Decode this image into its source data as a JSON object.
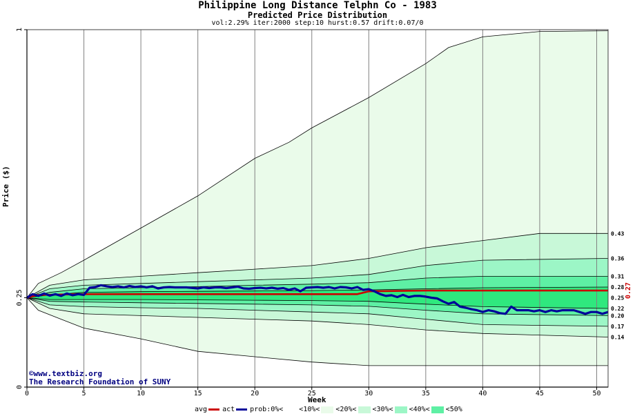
{
  "header": {
    "title": "Philippine Long Distance Telphn Co  - 1983",
    "subtitle": "Predicted Price Distribution",
    "params": "vol:2.29% iter:2000 step:10 hurst:0.57 drift:0.07/0"
  },
  "credits": {
    "line1": "©www.textbiz.org",
    "line2": "The Research Foundation of SUNY"
  },
  "legend": {
    "items": [
      {
        "label": "avg",
        "kind": "line",
        "color": "#cc0000"
      },
      {
        "label": "act",
        "kind": "line",
        "color": "#000099"
      },
      {
        "label": "prob:0%<",
        "kind": "swatch",
        "color": "#ffffff"
      },
      {
        "label": "<10%<",
        "kind": "swatch",
        "color": "#eafbea"
      },
      {
        "label": "<20%<",
        "kind": "swatch",
        "color": "#c8f8d8"
      },
      {
        "label": "<30%<",
        "kind": "swatch",
        "color": "#9cf6c6"
      },
      {
        "label": "<40%<",
        "kind": "swatch",
        "color": "#5ef0a4"
      },
      {
        "label": "<50%",
        "kind": "swatch",
        "color": ""
      }
    ]
  },
  "chart_data": {
    "type": "area",
    "title": "Philippine Long Distance Telphn Co  - 1983",
    "subtitle": "Predicted Price Distribution",
    "xlabel": "Week",
    "ylabel": "Price ($)",
    "xlim": [
      0,
      51
    ],
    "ylim": [
      0,
      1
    ],
    "x_ticks": [
      0,
      5,
      10,
      15,
      20,
      25,
      30,
      35,
      40,
      45,
      50
    ],
    "y_ticks": [
      {
        "value": 0,
        "label": "0"
      },
      {
        "value": 0.25,
        "label": "0.25"
      },
      {
        "value": 1,
        "label": "1"
      }
    ],
    "grid": true,
    "current_price_label": "0.27",
    "current_price": 0.27,
    "right_labels": [
      "0.43",
      "0.36",
      "0.31",
      "0.28",
      "0.25",
      "0.22",
      "0.20",
      "0.17",
      "0.14"
    ],
    "bands": [
      {
        "range": "0-10%",
        "color": "#eafbea",
        "upper": [
          [
            0,
            0.25
          ],
          [
            1,
            0.29
          ],
          [
            3,
            0.32
          ],
          [
            5,
            0.355
          ],
          [
            10,
            0.445
          ],
          [
            15,
            0.535
          ],
          [
            20,
            0.64
          ],
          [
            23,
            0.685
          ],
          [
            25,
            0.725
          ],
          [
            30,
            0.81
          ],
          [
            35,
            0.905
          ],
          [
            37,
            0.95
          ],
          [
            40,
            0.98
          ],
          [
            45,
            0.995
          ],
          [
            51,
            0.997
          ]
        ],
        "lower": [
          [
            0,
            0.25
          ],
          [
            1,
            0.215
          ],
          [
            3,
            0.19
          ],
          [
            5,
            0.165
          ],
          [
            10,
            0.135
          ],
          [
            15,
            0.1
          ],
          [
            20,
            0.085
          ],
          [
            25,
            0.07
          ],
          [
            30,
            0.06
          ],
          [
            35,
            0.06
          ],
          [
            51,
            0.06
          ]
        ]
      },
      {
        "range": "10-20%",
        "color": "#c8f8d8",
        "upper": [
          [
            0,
            0.25
          ],
          [
            2,
            0.285
          ],
          [
            5,
            0.3
          ],
          [
            10,
            0.31
          ],
          [
            15,
            0.32
          ],
          [
            20,
            0.33
          ],
          [
            25,
            0.34
          ],
          [
            30,
            0.36
          ],
          [
            35,
            0.39
          ],
          [
            40,
            0.41
          ],
          [
            45,
            0.43
          ],
          [
            51,
            0.43
          ]
        ],
        "lower": [
          [
            0,
            0.25
          ],
          [
            2,
            0.22
          ],
          [
            5,
            0.205
          ],
          [
            10,
            0.2
          ],
          [
            15,
            0.195
          ],
          [
            20,
            0.19
          ],
          [
            25,
            0.185
          ],
          [
            30,
            0.175
          ],
          [
            35,
            0.16
          ],
          [
            40,
            0.15
          ],
          [
            51,
            0.14
          ]
        ]
      },
      {
        "range": "20-30%",
        "color": "#9cf6c6",
        "upper": [
          [
            0,
            0.25
          ],
          [
            2,
            0.275
          ],
          [
            5,
            0.285
          ],
          [
            10,
            0.29
          ],
          [
            15,
            0.295
          ],
          [
            20,
            0.3
          ],
          [
            25,
            0.305
          ],
          [
            30,
            0.315
          ],
          [
            35,
            0.34
          ],
          [
            40,
            0.355
          ],
          [
            51,
            0.36
          ]
        ],
        "lower": [
          [
            0,
            0.25
          ],
          [
            2,
            0.23
          ],
          [
            5,
            0.225
          ],
          [
            10,
            0.222
          ],
          [
            15,
            0.22
          ],
          [
            20,
            0.215
          ],
          [
            25,
            0.21
          ],
          [
            30,
            0.205
          ],
          [
            35,
            0.19
          ],
          [
            40,
            0.175
          ],
          [
            51,
            0.17
          ]
        ]
      },
      {
        "range": "30-40%",
        "color": "#5ef0a4",
        "upper": [
          [
            0,
            0.25
          ],
          [
            2,
            0.265
          ],
          [
            5,
            0.275
          ],
          [
            10,
            0.278
          ],
          [
            15,
            0.281
          ],
          [
            20,
            0.285
          ],
          [
            25,
            0.288
          ],
          [
            30,
            0.292
          ],
          [
            35,
            0.305
          ],
          [
            40,
            0.31
          ],
          [
            51,
            0.31
          ]
        ],
        "lower": [
          [
            0,
            0.25
          ],
          [
            2,
            0.24
          ],
          [
            5,
            0.238
          ],
          [
            10,
            0.236
          ],
          [
            15,
            0.234
          ],
          [
            20,
            0.232
          ],
          [
            25,
            0.23
          ],
          [
            30,
            0.226
          ],
          [
            35,
            0.215
          ],
          [
            40,
            0.205
          ],
          [
            51,
            0.2
          ]
        ]
      },
      {
        "range": "40-50%",
        "color": "#2fe87e",
        "upper": [
          [
            0,
            0.25
          ],
          [
            2,
            0.258
          ],
          [
            5,
            0.265
          ],
          [
            10,
            0.267
          ],
          [
            15,
            0.268
          ],
          [
            20,
            0.269
          ],
          [
            25,
            0.27
          ],
          [
            30,
            0.272
          ],
          [
            35,
            0.275
          ],
          [
            40,
            0.278
          ],
          [
            51,
            0.28
          ]
        ],
        "lower": [
          [
            0,
            0.25
          ],
          [
            2,
            0.245
          ],
          [
            5,
            0.245
          ],
          [
            10,
            0.245
          ],
          [
            15,
            0.244
          ],
          [
            20,
            0.243
          ],
          [
            25,
            0.242
          ],
          [
            30,
            0.24
          ],
          [
            35,
            0.232
          ],
          [
            40,
            0.225
          ],
          [
            51,
            0.22
          ]
        ]
      }
    ],
    "series": [
      {
        "name": "avg",
        "color": "#cc0000",
        "points": [
          [
            0,
            0.25
          ],
          [
            1,
            0.258
          ],
          [
            5,
            0.26
          ],
          [
            10,
            0.26
          ],
          [
            15,
            0.26
          ],
          [
            20,
            0.26
          ],
          [
            25,
            0.26
          ],
          [
            29,
            0.26
          ],
          [
            30,
            0.268
          ],
          [
            35,
            0.27
          ],
          [
            40,
            0.27
          ],
          [
            51,
            0.27
          ]
        ]
      },
      {
        "name": "act",
        "color": "#000099",
        "points": [
          [
            0,
            0.25
          ],
          [
            0.5,
            0.26
          ],
          [
            1,
            0.255
          ],
          [
            1.5,
            0.262
          ],
          [
            2,
            0.256
          ],
          [
            2.5,
            0.26
          ],
          [
            3,
            0.255
          ],
          [
            3.5,
            0.262
          ],
          [
            4,
            0.257
          ],
          [
            4.5,
            0.26
          ],
          [
            5,
            0.258
          ],
          [
            5.5,
            0.278
          ],
          [
            6,
            0.28
          ],
          [
            6.5,
            0.285
          ],
          [
            7,
            0.282
          ],
          [
            7.5,
            0.28
          ],
          [
            8,
            0.282
          ],
          [
            8.5,
            0.279
          ],
          [
            9,
            0.283
          ],
          [
            9.5,
            0.28
          ],
          [
            10,
            0.282
          ],
          [
            10.5,
            0.279
          ],
          [
            11,
            0.282
          ],
          [
            11.5,
            0.276
          ],
          [
            12,
            0.279
          ],
          [
            12.5,
            0.28
          ],
          [
            13,
            0.279
          ],
          [
            14,
            0.279
          ],
          [
            15,
            0.276
          ],
          [
            15.5,
            0.279
          ],
          [
            16,
            0.277
          ],
          [
            16.5,
            0.279
          ],
          [
            17,
            0.279
          ],
          [
            17.5,
            0.277
          ],
          [
            18,
            0.279
          ],
          [
            18.5,
            0.281
          ],
          [
            19,
            0.276
          ],
          [
            19.5,
            0.275
          ],
          [
            20,
            0.277
          ],
          [
            20.5,
            0.278
          ],
          [
            21,
            0.276
          ],
          [
            21.5,
            0.278
          ],
          [
            22,
            0.275
          ],
          [
            22.5,
            0.277
          ],
          [
            23,
            0.272
          ],
          [
            23.5,
            0.276
          ],
          [
            24,
            0.268
          ],
          [
            24.5,
            0.278
          ],
          [
            25,
            0.279
          ],
          [
            25.5,
            0.28
          ],
          [
            26,
            0.278
          ],
          [
            26.5,
            0.28
          ],
          [
            27,
            0.276
          ],
          [
            27.5,
            0.28
          ],
          [
            28,
            0.279
          ],
          [
            28.5,
            0.276
          ],
          [
            29,
            0.28
          ],
          [
            29.5,
            0.272
          ],
          [
            30,
            0.274
          ],
          [
            30.5,
            0.268
          ],
          [
            31,
            0.26
          ],
          [
            31.5,
            0.255
          ],
          [
            32,
            0.257
          ],
          [
            32.5,
            0.252
          ],
          [
            33,
            0.258
          ],
          [
            33.5,
            0.252
          ],
          [
            34,
            0.255
          ],
          [
            34.5,
            0.255
          ],
          [
            35,
            0.253
          ],
          [
            35.5,
            0.25
          ],
          [
            36,
            0.248
          ],
          [
            36.5,
            0.24
          ],
          [
            37,
            0.233
          ],
          [
            37.5,
            0.238
          ],
          [
            38,
            0.225
          ],
          [
            38.5,
            0.222
          ],
          [
            39,
            0.218
          ],
          [
            39.5,
            0.215
          ],
          [
            40,
            0.21
          ],
          [
            40.5,
            0.215
          ],
          [
            41,
            0.212
          ],
          [
            41.5,
            0.207
          ],
          [
            42,
            0.205
          ],
          [
            42.5,
            0.225
          ],
          [
            43,
            0.215
          ],
          [
            43.5,
            0.215
          ],
          [
            44,
            0.215
          ],
          [
            44.5,
            0.212
          ],
          [
            45,
            0.215
          ],
          [
            45.5,
            0.21
          ],
          [
            46,
            0.215
          ],
          [
            46.5,
            0.212
          ],
          [
            47,
            0.215
          ],
          [
            47.5,
            0.215
          ],
          [
            48,
            0.215
          ],
          [
            48.5,
            0.21
          ],
          [
            49,
            0.205
          ],
          [
            49.5,
            0.21
          ],
          [
            50,
            0.21
          ],
          [
            50.5,
            0.205
          ],
          [
            51,
            0.21
          ]
        ]
      }
    ]
  }
}
